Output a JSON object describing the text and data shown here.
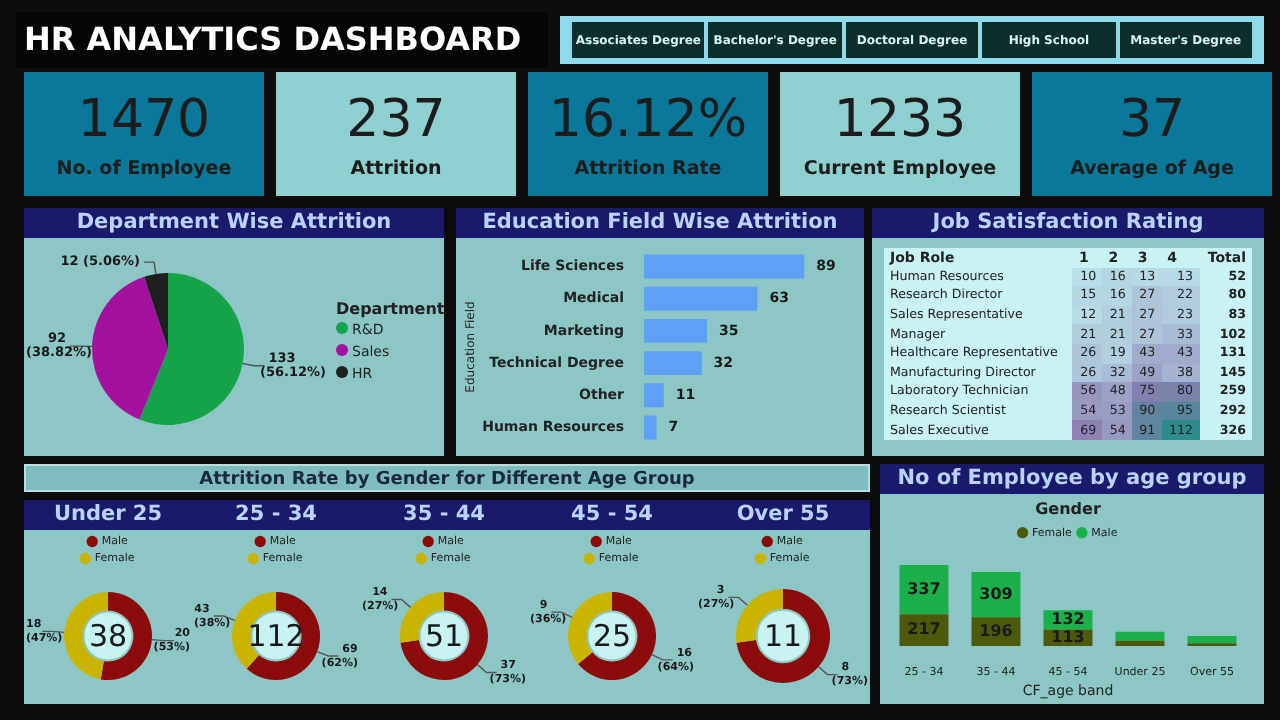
{
  "chart_data": [
    {
      "type": "other",
      "title": "HR ANALYTICS DASHBOARD",
      "annotations": [
        "Associates Degree",
        "Bachelor's Degree",
        "Doctoral Degree",
        "High School",
        "Master's Degree"
      ]
    },
    {
      "type": "other",
      "title": "No. of Employee",
      "annotations": [
        "1470"
      ]
    },
    {
      "type": "other",
      "title": "Attrition",
      "annotations": [
        "237"
      ]
    },
    {
      "type": "other",
      "title": "Attrition Rate",
      "annotations": [
        "16.12%"
      ]
    },
    {
      "type": "other",
      "title": "Current Employee",
      "annotations": [
        "1233"
      ]
    },
    {
      "type": "other",
      "title": "Average of Age",
      "annotations": [
        "37"
      ]
    },
    {
      "type": "pie",
      "title": "Department Wise Attrition",
      "categories": [
        "R&D",
        "Sales",
        "HR"
      ],
      "values": [
        133,
        92,
        12
      ],
      "colors": [
        "#16a34a",
        "#a3129e",
        "#1f1f1f"
      ],
      "value_labels": [
        "133 (56.12%)",
        "92 (38.82%)",
        "12 (5.06%)"
      ],
      "legend": "right",
      "legend_title": "Department"
    },
    {
      "type": "bar",
      "orientation": "horizontal",
      "title": "Education Field Wise Attrition",
      "categories": [
        "Life Sciences",
        "Medical",
        "Marketing",
        "Technical Degree",
        "Other",
        "Human Resources"
      ],
      "values": [
        89,
        63,
        35,
        32,
        11,
        7
      ],
      "color": "#5ea0f5",
      "ylabel": "Education Field",
      "data_labels": true,
      "tick_labels": "y"
    },
    {
      "type": "heatmap",
      "data_labels": true,
      "title": "Job Satisfaction Rating",
      "ylabel": "Job Role",
      "y2label": "Total",
      "categories": [
        "1",
        "2",
        "3",
        "4"
      ],
      "y_categories": [
        "Human Resources",
        "Research Director",
        "Sales Representative",
        "Manager",
        "Healthcare Representative",
        "Manufacturing Director",
        "Laboratory Technician",
        "Research Scientist",
        "Sales Executive"
      ],
      "y2_categories": [
        "52",
        "80",
        "83",
        "102",
        "131",
        "145",
        "259",
        "292",
        "326"
      ],
      "cells": [
        [
          10,
          16,
          13,
          13
        ],
        [
          15,
          16,
          27,
          22
        ],
        [
          12,
          21,
          27,
          23
        ],
        [
          21,
          21,
          27,
          33
        ],
        [
          26,
          19,
          43,
          43
        ],
        [
          26,
          32,
          49,
          38
        ],
        [
          56,
          48,
          75,
          80
        ],
        [
          54,
          53,
          90,
          95
        ],
        [
          69,
          54,
          91,
          112
        ]
      ]
    },
    {
      "type": "other",
      "title": "Attrition Rate by Gender for Different Age Group"
    },
    {
      "type": "donut",
      "title": "Under 25",
      "categories": [
        "Male",
        "Female"
      ],
      "values": [
        20,
        18
      ],
      "colors": [
        "#8b0a0a",
        "#c9b400"
      ],
      "value_labels": [
        "20 (53%)",
        "18 (47%)"
      ],
      "annotations": [
        "38"
      ],
      "legend": "top"
    },
    {
      "type": "donut",
      "title": "25 - 34",
      "categories": [
        "Male",
        "Female"
      ],
      "values": [
        69,
        43
      ],
      "colors": [
        "#8b0a0a",
        "#c9b400"
      ],
      "value_labels": [
        "69 (62%)",
        "43 (38%)"
      ],
      "annotations": [
        "112"
      ],
      "legend": "top"
    },
    {
      "type": "donut",
      "title": "35 - 44",
      "categories": [
        "Male",
        "Female"
      ],
      "values": [
        37,
        14
      ],
      "colors": [
        "#8b0a0a",
        "#c9b400"
      ],
      "value_labels": [
        "37 (73%)",
        "14 (27%)"
      ],
      "annotations": [
        "51"
      ],
      "legend": "top"
    },
    {
      "type": "donut",
      "title": "45 - 54",
      "categories": [
        "Male",
        "Female"
      ],
      "values": [
        16,
        9
      ],
      "colors": [
        "#8b0a0a",
        "#c9b400"
      ],
      "value_labels": [
        "16 (64%)",
        "9 (36%)"
      ],
      "annotations": [
        "25"
      ],
      "legend": "top"
    },
    {
      "type": "donut",
      "title": "Over 55",
      "categories": [
        "Male",
        "Female"
      ],
      "values": [
        8,
        3
      ],
      "colors": [
        "#8b0a0a",
        "#c9b400"
      ],
      "value_labels": [
        "8 (73%)",
        "3 (27%)"
      ],
      "annotations": [
        "11"
      ],
      "legend": "top"
    },
    {
      "type": "bar",
      "stacked": true,
      "title": "No of Employee by age group",
      "categories": [
        "25 - 34",
        "35 - 44",
        "45 - 54",
        "Under 25",
        "Over 55"
      ],
      "xlabel": "CF_age band",
      "legend": "top",
      "legend_title": "Gender",
      "tick_labels": "x",
      "series": [
        {
          "name": "Female",
          "color": "#4d5a0c",
          "values": [
            217,
            196,
            113,
            36,
            19
          ],
          "value_labels": [
            "217",
            "196",
            "113",
            null,
            null
          ]
        },
        {
          "name": "Male",
          "color": "#1bb04a",
          "values": [
            337,
            309,
            132,
            61,
            50
          ],
          "value_labels": [
            "337",
            "309",
            "132",
            null,
            null
          ]
        }
      ]
    }
  ]
}
